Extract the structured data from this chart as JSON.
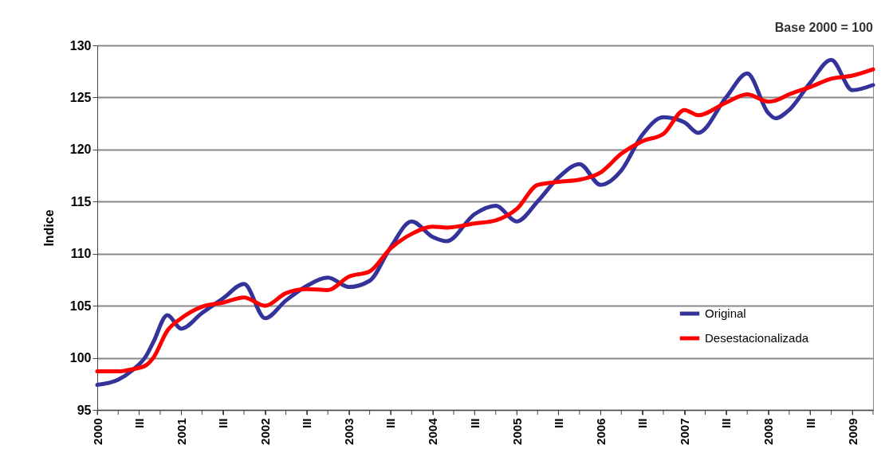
{
  "chart_data": {
    "type": "line",
    "ylabel": "Indice",
    "annotations": [
      "Base 2000 = 100"
    ],
    "x": [
      "2000-01",
      "2000-04",
      "2000-06",
      "2000-08",
      "2000-09",
      "2000-11",
      "2001-01",
      "2001-04",
      "2001-07",
      "2001-10",
      "2002-01",
      "2002-04",
      "2002-07",
      "2002-10",
      "2003-01",
      "2003-04",
      "2003-07",
      "2003-10",
      "2004-01",
      "2004-03",
      "2004-07",
      "2004-10",
      "2005-01",
      "2005-04",
      "2005-07",
      "2005-10",
      "2006-01",
      "2006-04",
      "2006-07",
      "2006-10",
      "2007-01",
      "2007-03",
      "2007-07",
      "2007-10",
      "2008-01",
      "2008-02",
      "2008-04",
      "2008-07",
      "2008-10",
      "2009-01",
      "2009-04"
    ],
    "series": [
      {
        "name": "Original",
        "color": "#333399",
        "values": [
          97.4,
          97.9,
          98.8,
          100.2,
          101.5,
          104.1,
          102.8,
          104.3,
          105.7,
          107.1,
          103.8,
          105.5,
          106.9,
          107.7,
          106.8,
          107.4,
          110.6,
          113.1,
          111.6,
          111.2,
          113.8,
          114.6,
          113.1,
          115.0,
          117.3,
          118.6,
          116.6,
          118.0,
          121.4,
          123.1,
          122.6,
          121.6,
          125.0,
          127.3,
          123.5,
          123.0,
          123.8,
          126.4,
          128.6,
          125.7,
          126.2
        ]
      },
      {
        "name": "Desestacionalizada",
        "color": "#ff0000",
        "values": [
          98.7,
          98.7,
          98.9,
          99.3,
          100.0,
          102.6,
          103.8,
          104.9,
          105.3,
          105.8,
          105.0,
          106.2,
          106.6,
          106.5,
          107.8,
          108.3,
          110.5,
          111.9,
          112.6,
          112.5,
          112.9,
          113.2,
          114.3,
          116.6,
          116.9,
          117.1,
          117.8,
          119.6,
          120.8,
          121.5,
          123.8,
          123.3,
          124.5,
          125.3,
          124.6,
          124.7,
          125.3,
          126.0,
          126.8,
          127.1,
          127.7
        ]
      }
    ],
    "xlim": [
      "2000-01",
      "2009-04"
    ],
    "xticks": [
      {
        "value": "2000-01",
        "label": "2000"
      },
      {
        "value": "2000-04",
        "label": null
      },
      {
        "value": "2000-07",
        "label": "III"
      },
      {
        "value": "2000-10",
        "label": null
      },
      {
        "value": "2001-01",
        "label": "2001"
      },
      {
        "value": "2001-04",
        "label": null
      },
      {
        "value": "2001-07",
        "label": "III"
      },
      {
        "value": "2001-10",
        "label": null
      },
      {
        "value": "2002-01",
        "label": "2002"
      },
      {
        "value": "2002-04",
        "label": null
      },
      {
        "value": "2002-07",
        "label": "III"
      },
      {
        "value": "2002-10",
        "label": null
      },
      {
        "value": "2003-01",
        "label": "2003"
      },
      {
        "value": "2003-04",
        "label": null
      },
      {
        "value": "2003-07",
        "label": "III"
      },
      {
        "value": "2003-10",
        "label": null
      },
      {
        "value": "2004-01",
        "label": "2004"
      },
      {
        "value": "2004-04",
        "label": null
      },
      {
        "value": "2004-07",
        "label": "III"
      },
      {
        "value": "2004-10",
        "label": null
      },
      {
        "value": "2005-01",
        "label": "2005"
      },
      {
        "value": "2005-04",
        "label": null
      },
      {
        "value": "2005-07",
        "label": "III"
      },
      {
        "value": "2005-10",
        "label": null
      },
      {
        "value": "2006-01",
        "label": "2006"
      },
      {
        "value": "2006-04",
        "label": null
      },
      {
        "value": "2006-07",
        "label": "III"
      },
      {
        "value": "2006-10",
        "label": null
      },
      {
        "value": "2007-01",
        "label": "2007"
      },
      {
        "value": "2007-04",
        "label": null
      },
      {
        "value": "2007-07",
        "label": "III"
      },
      {
        "value": "2007-10",
        "label": null
      },
      {
        "value": "2008-01",
        "label": "2008"
      },
      {
        "value": "2008-04",
        "label": null
      },
      {
        "value": "2008-07",
        "label": "III"
      },
      {
        "value": "2008-10",
        "label": null
      },
      {
        "value": "2009-01",
        "label": "2009"
      },
      {
        "value": "2009-04",
        "label": null
      }
    ],
    "ylim": [
      95,
      130
    ],
    "yticks": [
      95,
      100,
      105,
      110,
      115,
      120,
      125,
      130
    ],
    "grid": "y",
    "legend": "bottom right",
    "marker": "none",
    "line_style": "solid"
  }
}
